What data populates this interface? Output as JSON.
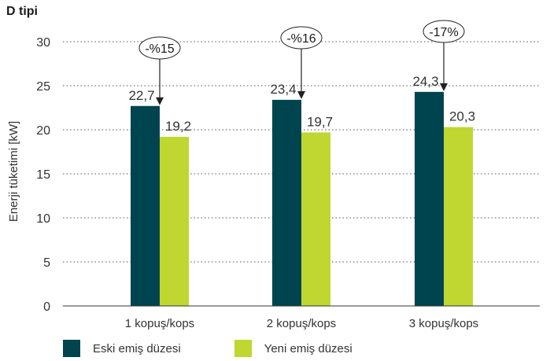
{
  "chart_data": {
    "type": "bar",
    "title": "D tipi",
    "ylabel": "Enerji tüketimi [kW]",
    "xlabel": "",
    "ylim": [
      0,
      30
    ],
    "yticks": [
      "0",
      "5",
      "10",
      "15",
      "20",
      "25",
      "30"
    ],
    "grid": "horizontal-dotted",
    "categories": [
      "1 kopuş/kops",
      "2 kopuş/kops",
      "3 kopuş/kops"
    ],
    "series": [
      {
        "name": "Eski emiş düzesi",
        "values": [
          22.7,
          23.4,
          24.3
        ],
        "labels": [
          "22,7",
          "23,4",
          "24,3"
        ],
        "color": "#00444f"
      },
      {
        "name": "Yeni emiş düzesi",
        "values": [
          19.2,
          19.7,
          20.3
        ],
        "labels": [
          "19,2",
          "19,7",
          "20,3"
        ],
        "color": "#bfd730"
      }
    ],
    "annotations": [
      "-%15",
      "-%16",
      "-17%"
    ],
    "legend_position": "bottom-left"
  }
}
